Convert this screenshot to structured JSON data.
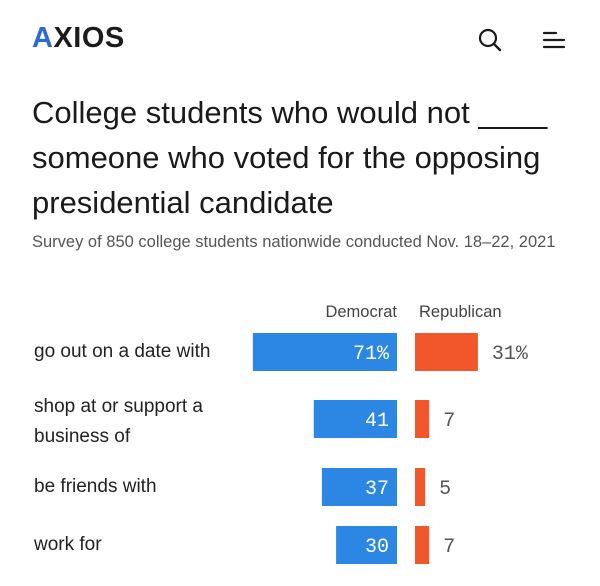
{
  "header": {
    "logo_main": "AXIOS",
    "logo_accent_letter": "A",
    "logo_rest": "XIOS",
    "search_icon": "search-icon",
    "menu_icon": "menu-icon",
    "accent_color": "#2a6bd6"
  },
  "chart_data": {
    "type": "bar",
    "title": "College students who would not ____ someone who voted for the opposing presidential candidate",
    "subtitle": "Survey of 850 college students nationwide conducted Nov. 18–22, 2021",
    "categories": [
      "go out on a date with",
      "shop at or support a business of",
      "be friends with",
      "work for"
    ],
    "series": [
      {
        "name": "Democrat",
        "color": "#2b87e3",
        "values": [
          71,
          41,
          37,
          30
        ],
        "labels": [
          "71%",
          "41",
          "37",
          "30"
        ]
      },
      {
        "name": "Republican",
        "color": "#f1572a",
        "values": [
          31,
          7,
          5,
          7
        ],
        "labels": [
          "31%",
          "7",
          "5",
          "7"
        ]
      }
    ],
    "unit": "%",
    "xlim": [
      0,
      100
    ],
    "legend": "top",
    "grid": false
  }
}
